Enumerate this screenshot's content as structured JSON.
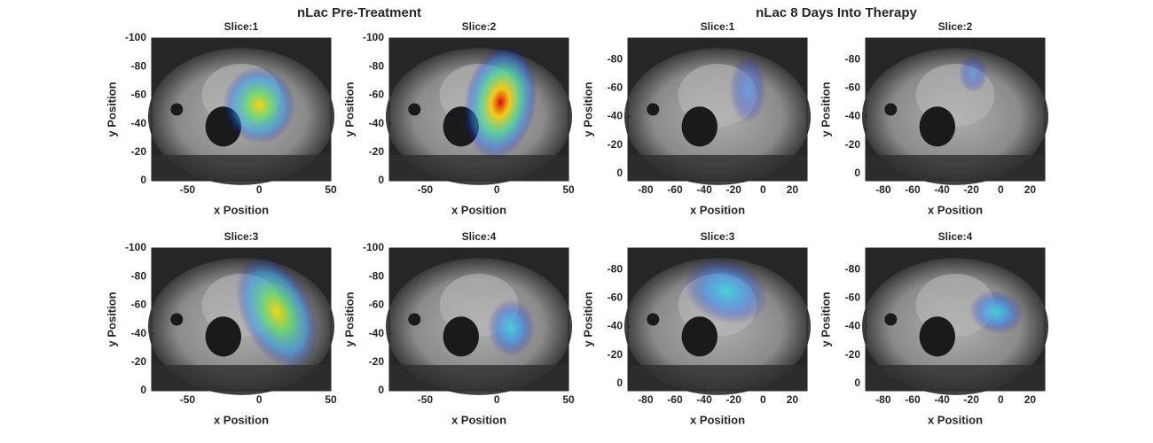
{
  "suptitles": [
    "nLac Pre-Treatment",
    "nLac 8 Days Into Therapy"
  ],
  "chart_data": [
    {
      "type": "image",
      "title": "Slice:1",
      "xlabel": "x Position",
      "ylabel": "y Position",
      "xlim": [
        -75,
        50
      ],
      "ylim": [
        -100,
        0
      ],
      "y_direction": "reverse",
      "xticks": [
        -50,
        0,
        50
      ],
      "yticks": [
        -100,
        -80,
        -60,
        -40,
        -20,
        0
      ]
    },
    {
      "type": "image",
      "title": "Slice:2",
      "xlabel": "x Position",
      "ylabel": "y Position",
      "xlim": [
        -75,
        50
      ],
      "ylim": [
        -100,
        0
      ],
      "y_direction": "reverse",
      "xticks": [
        -50,
        0,
        50
      ],
      "yticks": [
        -100,
        -80,
        -60,
        -40,
        -20,
        0
      ]
    },
    {
      "type": "image",
      "title": "Slice:3",
      "xlabel": "x Position",
      "ylabel": "y Position",
      "xlim": [
        -75,
        50
      ],
      "ylim": [
        -100,
        0
      ],
      "y_direction": "reverse",
      "xticks": [
        -50,
        0,
        50
      ],
      "yticks": [
        -100,
        -80,
        -60,
        -40,
        -20,
        0
      ]
    },
    {
      "type": "image",
      "title": "Slice:4",
      "xlabel": "x Position",
      "ylabel": "y Position",
      "xlim": [
        -75,
        50
      ],
      "ylim": [
        -100,
        0
      ],
      "y_direction": "reverse",
      "xticks": [
        -50,
        0,
        50
      ],
      "yticks": [
        -100,
        -80,
        -60,
        -40,
        -20,
        0
      ]
    },
    {
      "type": "image",
      "title": "Slice:1",
      "xlabel": "x Position",
      "ylabel": "y Position",
      "xlim": [
        -92,
        30
      ],
      "ylim": [
        -95,
        5
      ],
      "y_direction": "reverse",
      "xticks": [
        -80,
        -60,
        -40,
        -20,
        0,
        20
      ],
      "yticks": [
        -80,
        -60,
        -40,
        -20,
        0
      ]
    },
    {
      "type": "image",
      "title": "Slice:2",
      "xlabel": "x Position",
      "ylabel": "y Position",
      "xlim": [
        -92,
        30
      ],
      "ylim": [
        -95,
        5
      ],
      "y_direction": "reverse",
      "xticks": [
        -80,
        -60,
        -40,
        -20,
        0,
        20
      ],
      "yticks": [
        -80,
        -60,
        -40,
        -20,
        0
      ]
    },
    {
      "type": "image",
      "title": "Slice:3",
      "xlabel": "x Position",
      "ylabel": "y Position",
      "xlim": [
        -92,
        30
      ],
      "ylim": [
        -95,
        5
      ],
      "y_direction": "reverse",
      "xticks": [
        -80,
        -60,
        -40,
        -20,
        0,
        20
      ],
      "yticks": [
        -80,
        -60,
        -40,
        -20,
        0
      ]
    },
    {
      "type": "image",
      "title": "Slice:4",
      "xlabel": "x Position",
      "ylabel": "y Position",
      "xlim": [
        -92,
        30
      ],
      "ylim": [
        -95,
        5
      ],
      "y_direction": "reverse",
      "xticks": [
        -80,
        -60,
        -40,
        -20,
        0,
        20
      ],
      "yticks": [
        -80,
        -60,
        -40,
        -20,
        0
      ]
    }
  ]
}
